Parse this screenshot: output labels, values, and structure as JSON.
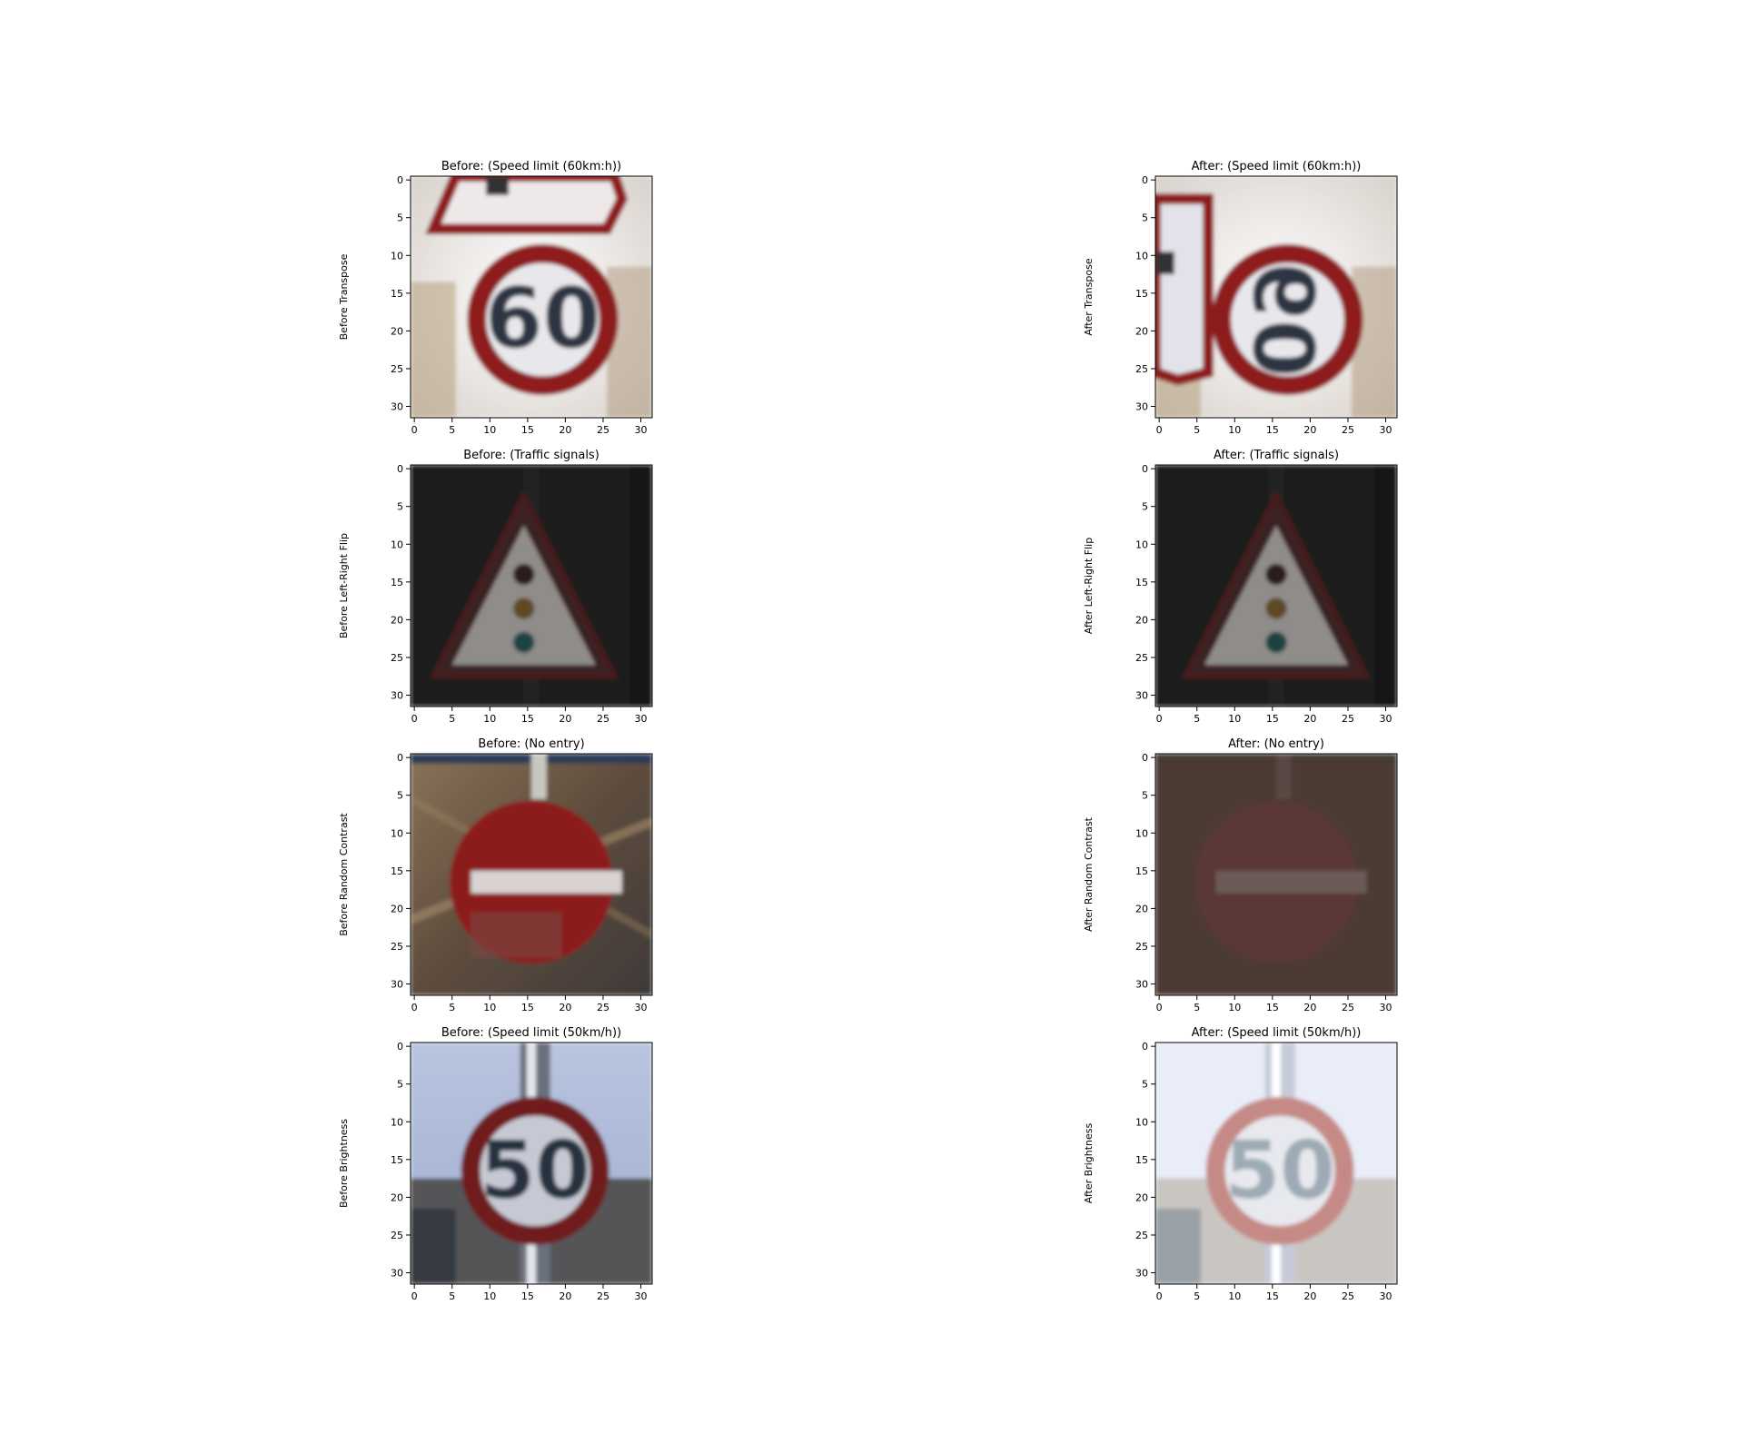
{
  "chart_data": [
    {
      "type": "image",
      "title": "Before: (Speed limit (60km:h))",
      "ylabel": "Before Transpose",
      "image": "speed-limit-60-sign",
      "xticks": [
        "0",
        "5",
        "10",
        "15",
        "20",
        "25",
        "30"
      ],
      "yticks": [
        "0",
        "5",
        "10",
        "15",
        "20",
        "25",
        "30"
      ],
      "xlim": [
        -0.5,
        31.5
      ],
      "ylim": [
        31.5,
        -0.5
      ]
    },
    {
      "type": "image",
      "title": "After: (Speed limit (60km:h))",
      "ylabel": "After Transpose",
      "image": "speed-limit-60-sign-transposed",
      "xticks": [
        "0",
        "5",
        "10",
        "15",
        "20",
        "25",
        "30"
      ],
      "yticks": [
        "0",
        "5",
        "10",
        "15",
        "20",
        "25",
        "30"
      ],
      "xlim": [
        -0.5,
        31.5
      ],
      "ylim": [
        31.5,
        -0.5
      ]
    },
    {
      "type": "image",
      "title": "Before: (Traffic signals)",
      "ylabel": "Before Left-Right Flip",
      "image": "traffic-signals-sign",
      "xticks": [
        "0",
        "5",
        "10",
        "15",
        "20",
        "25",
        "30"
      ],
      "yticks": [
        "0",
        "5",
        "10",
        "15",
        "20",
        "25",
        "30"
      ],
      "xlim": [
        -0.5,
        31.5
      ],
      "ylim": [
        31.5,
        -0.5
      ]
    },
    {
      "type": "image",
      "title": "After: (Traffic signals)",
      "ylabel": "After Left-Right Flip",
      "image": "traffic-signals-sign-flipped",
      "xticks": [
        "0",
        "5",
        "10",
        "15",
        "20",
        "25",
        "30"
      ],
      "yticks": [
        "0",
        "5",
        "10",
        "15",
        "20",
        "25",
        "30"
      ],
      "xlim": [
        -0.5,
        31.5
      ],
      "ylim": [
        31.5,
        -0.5
      ]
    },
    {
      "type": "image",
      "title": "Before: (No entry)",
      "ylabel": "Before Random Contrast",
      "image": "no-entry-sign",
      "xticks": [
        "0",
        "5",
        "10",
        "15",
        "20",
        "25",
        "30"
      ],
      "yticks": [
        "0",
        "5",
        "10",
        "15",
        "20",
        "25",
        "30"
      ],
      "xlim": [
        -0.5,
        31.5
      ],
      "ylim": [
        31.5,
        -0.5
      ]
    },
    {
      "type": "image",
      "title": "After: (No entry)",
      "ylabel": "After Random Contrast",
      "image": "no-entry-sign-low-contrast",
      "xticks": [
        "0",
        "5",
        "10",
        "15",
        "20",
        "25",
        "30"
      ],
      "yticks": [
        "0",
        "5",
        "10",
        "15",
        "20",
        "25",
        "30"
      ],
      "xlim": [
        -0.5,
        31.5
      ],
      "ylim": [
        31.5,
        -0.5
      ]
    },
    {
      "type": "image",
      "title": "Before: (Speed limit (50km/h))",
      "ylabel": "Before Brightness",
      "image": "speed-limit-50-sign",
      "xticks": [
        "0",
        "5",
        "10",
        "15",
        "20",
        "25",
        "30"
      ],
      "yticks": [
        "0",
        "5",
        "10",
        "15",
        "20",
        "25",
        "30"
      ],
      "xlim": [
        -0.5,
        31.5
      ],
      "ylim": [
        31.5,
        -0.5
      ]
    },
    {
      "type": "image",
      "title": "After: (Speed limit (50km/h))",
      "ylabel": "After Brightness",
      "image": "speed-limit-50-sign-brightened",
      "xticks": [
        "0",
        "5",
        "10",
        "15",
        "20",
        "25",
        "30"
      ],
      "yticks": [
        "0",
        "5",
        "10",
        "15",
        "20",
        "25",
        "30"
      ],
      "xlim": [
        -0.5,
        31.5
      ],
      "ylim": [
        31.5,
        -0.5
      ]
    }
  ],
  "colors": {
    "sign_red": "#8e1a1a",
    "sign_white": "#e8e8ec",
    "dark_background": "#1b1b1c",
    "no_entry_bg": "#6e5a44",
    "low_contrast_bg": "#4b3a33",
    "sky_blue": "#a9b7d6"
  }
}
